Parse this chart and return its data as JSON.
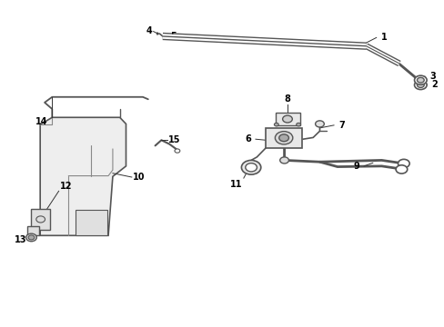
{
  "bg_color": "#ffffff",
  "line_color": "#555555",
  "label_color": "#000000",
  "fig_width": 4.89,
  "fig_height": 3.6,
  "dpi": 100,
  "font_size_number": 7,
  "connector_color": "#333333"
}
